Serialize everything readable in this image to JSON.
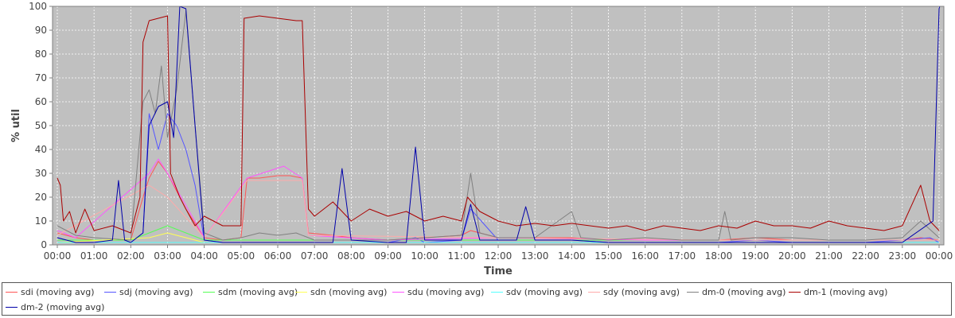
{
  "chart_data": {
    "type": "line",
    "title": "",
    "xlabel": "Time",
    "ylabel": "% util",
    "ylim": [
      0,
      100
    ],
    "yticks": [
      0,
      10,
      20,
      30,
      40,
      50,
      60,
      70,
      80,
      90,
      100
    ],
    "xlim": [
      "00:00",
      "24:00"
    ],
    "xtick_labels": [
      "00:00",
      "01:00",
      "02:00",
      "03:00",
      "04:00",
      "05:00",
      "06:00",
      "07:00",
      "08:00",
      "09:00",
      "10:00",
      "11:00",
      "12:00",
      "13:00",
      "14:00",
      "15:00",
      "16:00",
      "17:00",
      "18:00",
      "19:00",
      "20:00",
      "21:00",
      "22:00",
      "23:00",
      "00:00"
    ],
    "grid": true,
    "legend_position": "bottom",
    "background": "#c0c0c0",
    "series": [
      {
        "name": "sdi (moving avg)",
        "color": "#ff5555",
        "points": [
          [
            "00:00",
            5
          ],
          [
            "00:30",
            3
          ],
          [
            "01:00",
            2
          ],
          [
            "02:00",
            2
          ],
          [
            "02:20",
            20
          ],
          [
            "02:30",
            28
          ],
          [
            "02:45",
            35
          ],
          [
            "03:00",
            30
          ],
          [
            "03:30",
            15
          ],
          [
            "04:00",
            3
          ],
          [
            "04:30",
            2
          ],
          [
            "05:00",
            3
          ],
          [
            "05:10",
            28
          ],
          [
            "05:30",
            28
          ],
          [
            "06:00",
            29
          ],
          [
            "06:20",
            29
          ],
          [
            "06:40",
            28
          ],
          [
            "06:50",
            5
          ],
          [
            "07:30",
            4
          ],
          [
            "08:00",
            3
          ],
          [
            "09:00",
            2
          ],
          [
            "10:00",
            3
          ],
          [
            "11:00",
            4
          ],
          [
            "11:15",
            6
          ],
          [
            "12:00",
            3
          ],
          [
            "13:00",
            3
          ],
          [
            "14:00",
            3
          ],
          [
            "15:00",
            2
          ],
          [
            "16:00",
            2
          ],
          [
            "17:00",
            2
          ],
          [
            "18:00",
            2
          ],
          [
            "19:00",
            3
          ],
          [
            "20:00",
            2
          ],
          [
            "21:00",
            2
          ],
          [
            "22:00",
            2
          ],
          [
            "23:00",
            2
          ],
          [
            "23:30",
            3
          ],
          [
            "24:00",
            2
          ]
        ]
      },
      {
        "name": "sdj (moving avg)",
        "color": "#5555ff",
        "points": [
          [
            "00:00",
            3
          ],
          [
            "00:30",
            1
          ],
          [
            "01:00",
            1
          ],
          [
            "02:00",
            1
          ],
          [
            "02:20",
            5
          ],
          [
            "02:30",
            55
          ],
          [
            "02:45",
            40
          ],
          [
            "03:00",
            55
          ],
          [
            "03:15",
            50
          ],
          [
            "03:30",
            40
          ],
          [
            "03:45",
            25
          ],
          [
            "04:00",
            2
          ],
          [
            "04:30",
            1
          ],
          [
            "05:00",
            1
          ],
          [
            "06:00",
            1
          ],
          [
            "07:00",
            1
          ],
          [
            "08:00",
            1
          ],
          [
            "09:00",
            1
          ],
          [
            "09:45",
            3
          ],
          [
            "10:00",
            1
          ],
          [
            "11:00",
            2
          ],
          [
            "11:15",
            15
          ],
          [
            "12:00",
            2
          ],
          [
            "13:00",
            2
          ],
          [
            "14:00",
            2
          ],
          [
            "15:00",
            1
          ],
          [
            "16:00",
            1
          ],
          [
            "17:00",
            1
          ],
          [
            "18:00",
            1
          ],
          [
            "19:00",
            2
          ],
          [
            "20:00",
            1
          ],
          [
            "21:00",
            1
          ],
          [
            "22:00",
            1
          ],
          [
            "23:00",
            2
          ],
          [
            "23:45",
            3
          ],
          [
            "24:00",
            1
          ]
        ]
      },
      {
        "name": "sdm (moving avg)",
        "color": "#55ff55",
        "points": [
          [
            "00:00",
            2
          ],
          [
            "02:00",
            2
          ],
          [
            "02:30",
            5
          ],
          [
            "03:00",
            8
          ],
          [
            "04:00",
            2
          ],
          [
            "06:00",
            2
          ],
          [
            "08:00",
            2
          ],
          [
            "10:00",
            2
          ],
          [
            "12:00",
            2
          ],
          [
            "14:00",
            2
          ],
          [
            "16:00",
            2
          ],
          [
            "18:00",
            2
          ],
          [
            "20:00",
            2
          ],
          [
            "22:00",
            2
          ],
          [
            "24:00",
            2
          ]
        ]
      },
      {
        "name": "sdn (moving avg)",
        "color": "#ffff55",
        "points": [
          [
            "00:00",
            1
          ],
          [
            "02:30",
            3
          ],
          [
            "03:00",
            5
          ],
          [
            "04:00",
            1
          ],
          [
            "08:00",
            1
          ],
          [
            "12:00",
            1
          ],
          [
            "16:00",
            1
          ],
          [
            "20:00",
            1
          ],
          [
            "24:00",
            1
          ]
        ]
      },
      {
        "name": "sdu (moving avg)",
        "color": "#ff55ff",
        "points": [
          [
            "00:00",
            6
          ],
          [
            "00:30",
            3
          ],
          [
            "02:30",
            30
          ],
          [
            "02:45",
            36
          ],
          [
            "03:00",
            30
          ],
          [
            "04:00",
            3
          ],
          [
            "05:10",
            28
          ],
          [
            "06:10",
            33
          ],
          [
            "06:40",
            28
          ],
          [
            "06:50",
            4
          ],
          [
            "09:00",
            2
          ],
          [
            "12:00",
            3
          ],
          [
            "16:00",
            2
          ],
          [
            "20:00",
            2
          ],
          [
            "24:00",
            2
          ]
        ]
      },
      {
        "name": "sdv (moving avg)",
        "color": "#55ffff",
        "points": [
          [
            "00:00",
            1
          ],
          [
            "04:00",
            1
          ],
          [
            "08:00",
            1
          ],
          [
            "12:00",
            1
          ],
          [
            "16:00",
            1
          ],
          [
            "20:00",
            1
          ],
          [
            "24:00",
            1
          ]
        ]
      },
      {
        "name": "sdy (moving avg)",
        "color": "#ffaaaa",
        "points": [
          [
            "00:00",
            4
          ],
          [
            "02:30",
            25
          ],
          [
            "03:00",
            20
          ],
          [
            "04:00",
            3
          ],
          [
            "05:10",
            27
          ],
          [
            "06:40",
            27
          ],
          [
            "06:50",
            4
          ],
          [
            "12:00",
            3
          ],
          [
            "18:00",
            2
          ],
          [
            "24:00",
            2
          ]
        ]
      },
      {
        "name": "dm-0 (moving avg)",
        "color": "#808080",
        "points": [
          [
            "00:00",
            8
          ],
          [
            "00:30",
            4
          ],
          [
            "01:00",
            3
          ],
          [
            "02:00",
            2
          ],
          [
            "02:20",
            60
          ],
          [
            "02:30",
            65
          ],
          [
            "02:40",
            55
          ],
          [
            "02:50",
            75
          ],
          [
            "03:00",
            45
          ],
          [
            "03:15",
            65
          ],
          [
            "03:30",
            98
          ],
          [
            "03:45",
            50
          ],
          [
            "04:00",
            5
          ],
          [
            "04:30",
            2
          ],
          [
            "05:00",
            3
          ],
          [
            "05:30",
            5
          ],
          [
            "06:00",
            4
          ],
          [
            "06:30",
            5
          ],
          [
            "07:00",
            2
          ],
          [
            "09:00",
            2
          ],
          [
            "10:00",
            3
          ],
          [
            "11:00",
            4
          ],
          [
            "11:15",
            30
          ],
          [
            "11:30",
            5
          ],
          [
            "12:00",
            3
          ],
          [
            "13:00",
            3
          ],
          [
            "14:00",
            14
          ],
          [
            "14:15",
            3
          ],
          [
            "15:00",
            2
          ],
          [
            "16:00",
            3
          ],
          [
            "17:00",
            2
          ],
          [
            "18:00",
            2
          ],
          [
            "18:10",
            14
          ],
          [
            "18:20",
            2
          ],
          [
            "19:00",
            3
          ],
          [
            "20:00",
            3
          ],
          [
            "21:00",
            2
          ],
          [
            "22:00",
            2
          ],
          [
            "23:00",
            3
          ],
          [
            "23:30",
            10
          ],
          [
            "24:00",
            3
          ]
        ]
      },
      {
        "name": "dm-1 (moving avg)",
        "color": "#aa0000",
        "points": [
          [
            "00:00",
            28
          ],
          [
            "00:05",
            25
          ],
          [
            "00:10",
            10
          ],
          [
            "00:20",
            14
          ],
          [
            "00:30",
            5
          ],
          [
            "00:45",
            15
          ],
          [
            "01:00",
            6
          ],
          [
            "01:30",
            8
          ],
          [
            "02:00",
            5
          ],
          [
            "02:15",
            20
          ],
          [
            "02:20",
            85
          ],
          [
            "02:30",
            94
          ],
          [
            "02:45",
            95
          ],
          [
            "03:00",
            96
          ],
          [
            "03:05",
            30
          ],
          [
            "03:20",
            20
          ],
          [
            "03:30",
            15
          ],
          [
            "03:45",
            8
          ],
          [
            "04:00",
            12
          ],
          [
            "04:30",
            8
          ],
          [
            "05:00",
            8
          ],
          [
            "05:05",
            95
          ],
          [
            "05:30",
            96
          ],
          [
            "06:00",
            95
          ],
          [
            "06:30",
            94
          ],
          [
            "06:40",
            94
          ],
          [
            "06:50",
            15
          ],
          [
            "07:00",
            12
          ],
          [
            "07:30",
            18
          ],
          [
            "08:00",
            10
          ],
          [
            "08:30",
            15
          ],
          [
            "09:00",
            12
          ],
          [
            "09:30",
            14
          ],
          [
            "10:00",
            10
          ],
          [
            "10:30",
            12
          ],
          [
            "11:00",
            10
          ],
          [
            "11:10",
            20
          ],
          [
            "11:30",
            14
          ],
          [
            "12:00",
            10
          ],
          [
            "12:30",
            8
          ],
          [
            "13:00",
            9
          ],
          [
            "13:30",
            8
          ],
          [
            "14:00",
            9
          ],
          [
            "14:30",
            8
          ],
          [
            "15:00",
            7
          ],
          [
            "15:30",
            8
          ],
          [
            "16:00",
            6
          ],
          [
            "16:30",
            8
          ],
          [
            "17:00",
            7
          ],
          [
            "17:30",
            6
          ],
          [
            "18:00",
            8
          ],
          [
            "18:30",
            7
          ],
          [
            "19:00",
            10
          ],
          [
            "19:30",
            8
          ],
          [
            "20:00",
            8
          ],
          [
            "20:30",
            7
          ],
          [
            "21:00",
            10
          ],
          [
            "21:30",
            8
          ],
          [
            "22:00",
            7
          ],
          [
            "22:30",
            6
          ],
          [
            "23:00",
            8
          ],
          [
            "23:30",
            25
          ],
          [
            "23:45",
            10
          ],
          [
            "24:00",
            6
          ]
        ]
      },
      {
        "name": "dm-2 (moving avg)",
        "color": "#0000aa",
        "points": [
          [
            "00:00",
            3
          ],
          [
            "00:30",
            1
          ],
          [
            "01:00",
            1
          ],
          [
            "01:30",
            2
          ],
          [
            "01:40",
            27
          ],
          [
            "01:50",
            2
          ],
          [
            "02:00",
            1
          ],
          [
            "02:20",
            5
          ],
          [
            "02:30",
            50
          ],
          [
            "02:45",
            58
          ],
          [
            "03:00",
            60
          ],
          [
            "03:10",
            45
          ],
          [
            "03:20",
            100
          ],
          [
            "03:30",
            99
          ],
          [
            "03:45",
            50
          ],
          [
            "04:00",
            2
          ],
          [
            "04:30",
            1
          ],
          [
            "05:00",
            1
          ],
          [
            "06:00",
            1
          ],
          [
            "07:00",
            1
          ],
          [
            "07:30",
            1
          ],
          [
            "07:45",
            32
          ],
          [
            "08:00",
            2
          ],
          [
            "09:00",
            1
          ],
          [
            "09:30",
            1
          ],
          [
            "09:45",
            41
          ],
          [
            "10:00",
            2
          ],
          [
            "11:00",
            2
          ],
          [
            "11:15",
            17
          ],
          [
            "11:30",
            2
          ],
          [
            "12:00",
            2
          ],
          [
            "12:30",
            2
          ],
          [
            "12:45",
            16
          ],
          [
            "13:00",
            2
          ],
          [
            "14:00",
            2
          ],
          [
            "15:00",
            1
          ],
          [
            "16:00",
            1
          ],
          [
            "17:00",
            1
          ],
          [
            "18:00",
            1
          ],
          [
            "19:00",
            1
          ],
          [
            "20:00",
            1
          ],
          [
            "21:00",
            1
          ],
          [
            "22:00",
            1
          ],
          [
            "23:00",
            1
          ],
          [
            "23:50",
            10
          ],
          [
            "24:00",
            99
          ],
          [
            "24:01",
            100
          ]
        ]
      }
    ]
  }
}
